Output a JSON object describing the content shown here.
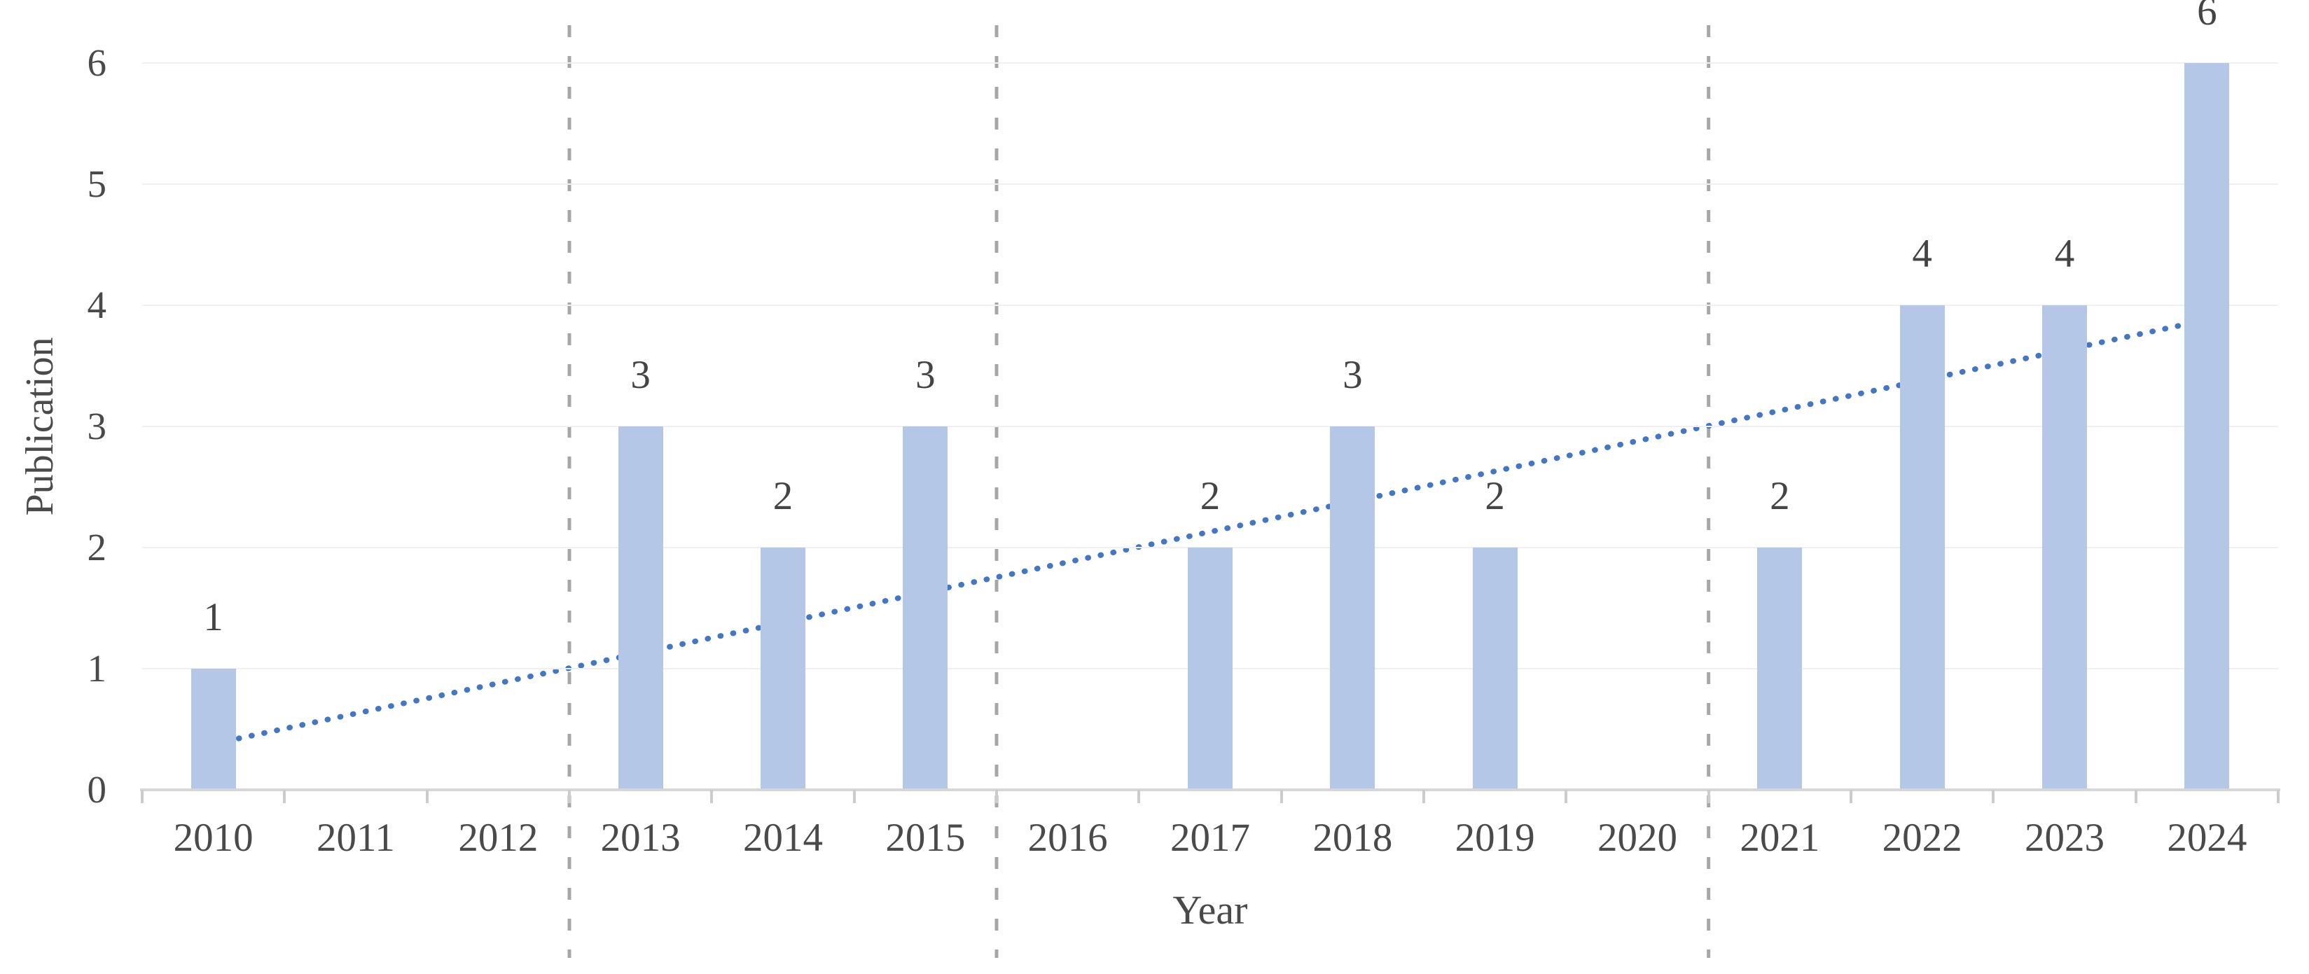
{
  "chart_data": {
    "type": "bar",
    "title": "",
    "xlabel": "Year",
    "ylabel": "Publication",
    "categories": [
      "2010",
      "2011",
      "2012",
      "2013",
      "2014",
      "2015",
      "2016",
      "2017",
      "2018",
      "2019",
      "2020",
      "2021",
      "2022",
      "2023",
      "2024"
    ],
    "values": [
      1,
      0,
      0,
      3,
      2,
      3,
      0,
      2,
      3,
      2,
      0,
      2,
      4,
      4,
      6
    ],
    "data_labels_shown": [
      "1",
      "3",
      "2",
      "3",
      "2",
      "3",
      "2",
      "2",
      "4",
      "4",
      "6"
    ],
    "ylim": [
      0,
      6
    ],
    "yticks": [
      "0",
      "1",
      "2",
      "3",
      "4",
      "5",
      "6"
    ],
    "grid": true,
    "legend_position": "none",
    "bar_color": "#b4c7e7",
    "gridline_color": "#f0f0f0",
    "axis_line_color": "#d6d6d6",
    "tick_mark_color": "#cccccc",
    "text_color": "#4a4a4a",
    "data_label_color": "#444444",
    "trendline": {
      "type": "linear",
      "style": "dotted",
      "color": "#4377c6",
      "start_value": 0.38,
      "end_value": 3.88
    },
    "dividers": {
      "style": "dashed",
      "color": "#a7a7a7",
      "after_categories": [
        "2012",
        "2015",
        "2020"
      ]
    }
  }
}
